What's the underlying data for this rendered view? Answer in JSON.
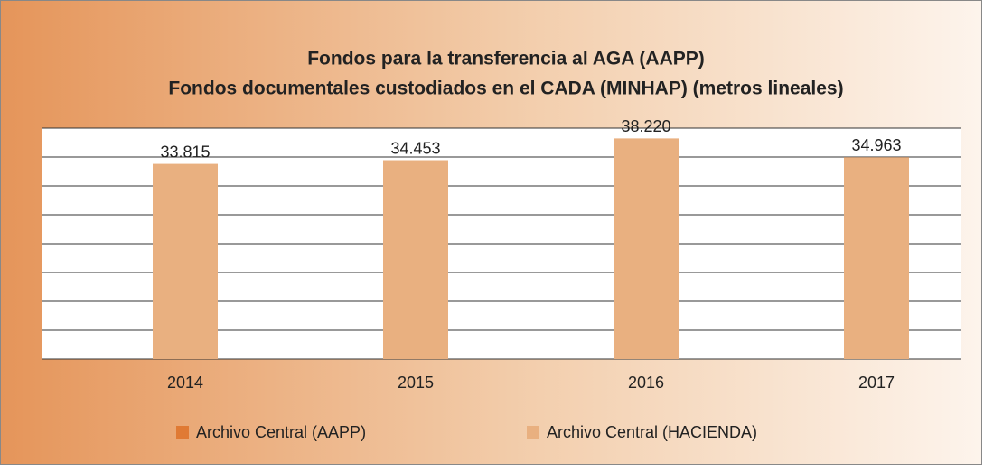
{
  "chart_data": {
    "type": "bar",
    "title": "Fondos para la transferencia al AGA (AAPP)",
    "subtitle": "Fondos documentales custodiados en el CADA (MINHAP) (metros lineales)",
    "categories": [
      "2014",
      "2015",
      "2016",
      "2017"
    ],
    "series": [
      {
        "name": "Archivo Central (AAPP)",
        "color": "#e07a34",
        "values": [
          null,
          null,
          null,
          null
        ]
      },
      {
        "name": "Archivo Central (HACIENDA)",
        "color": "#e9b080",
        "values": [
          33815,
          34453,
          38220,
          34963
        ],
        "value_labels": [
          "33.815",
          "34.453",
          "38.220",
          "34.963"
        ]
      }
    ],
    "ylim": [
      0,
      40000
    ],
    "yticks": [
      0,
      5000,
      10000,
      15000,
      20000,
      25000,
      30000,
      35000,
      40000
    ],
    "grid": true
  }
}
